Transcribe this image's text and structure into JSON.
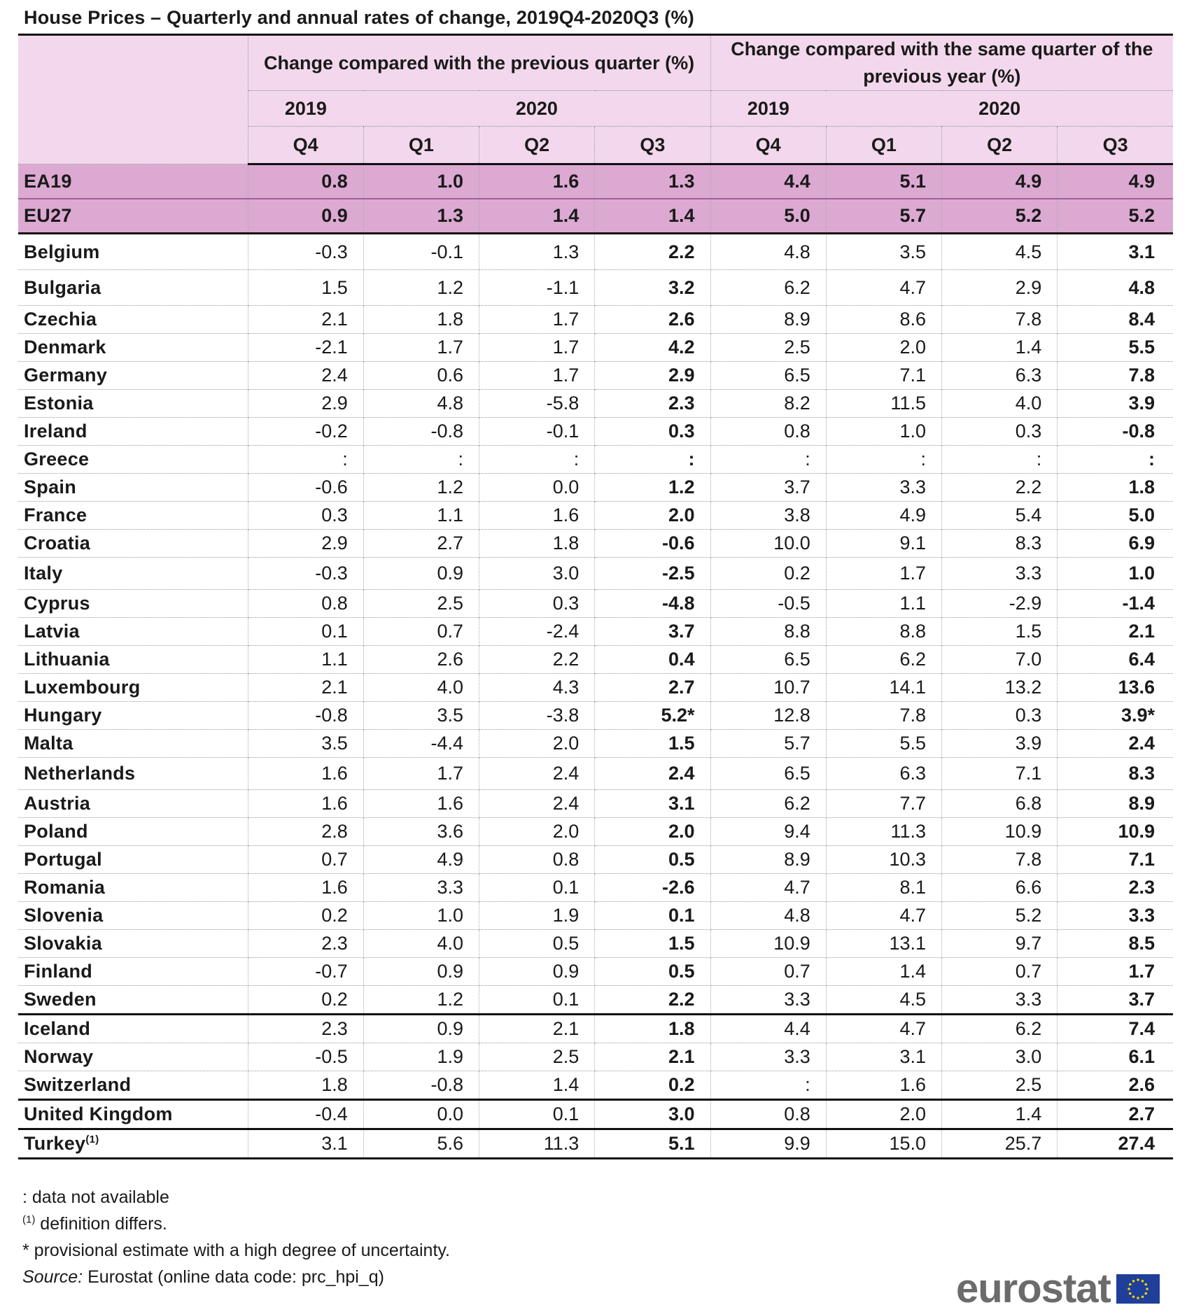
{
  "title": "House Prices – Quarterly and annual rates of change, 2019Q4-2020Q3 (%)",
  "header": {
    "group1": "Change compared with the previous quarter (%)",
    "group2": "Change compared with the same quarter of the previous year (%)",
    "year2019": "2019",
    "year2020": "2020",
    "quarters": [
      "Q4",
      "Q1",
      "Q2",
      "Q3",
      "Q4",
      "Q1",
      "Q2",
      "Q3"
    ]
  },
  "aggregates": [
    {
      "name": "EA19",
      "values": [
        "0.8",
        "1.0",
        "1.6",
        "1.3",
        "4.4",
        "5.1",
        "4.9",
        "4.9"
      ]
    },
    {
      "name": "EU27",
      "values": [
        "0.9",
        "1.3",
        "1.4",
        "1.4",
        "5.0",
        "5.7",
        "5.2",
        "5.2"
      ]
    }
  ],
  "members": [
    {
      "name": "Belgium",
      "values": [
        "-0.3",
        "-0.1",
        "1.3",
        "2.2",
        "4.8",
        "3.5",
        "4.5",
        "3.1"
      ]
    },
    {
      "name": "Bulgaria",
      "values": [
        "1.5",
        "1.2",
        "-1.1",
        "3.2",
        "6.2",
        "4.7",
        "2.9",
        "4.8"
      ]
    },
    {
      "name": "Czechia",
      "values": [
        "2.1",
        "1.8",
        "1.7",
        "2.6",
        "8.9",
        "8.6",
        "7.8",
        "8.4"
      ]
    },
    {
      "name": "Denmark",
      "values": [
        "-2.1",
        "1.7",
        "1.7",
        "4.2",
        "2.5",
        "2.0",
        "1.4",
        "5.5"
      ]
    },
    {
      "name": "Germany",
      "values": [
        "2.4",
        "0.6",
        "1.7",
        "2.9",
        "6.5",
        "7.1",
        "6.3",
        "7.8"
      ]
    },
    {
      "name": "Estonia",
      "values": [
        "2.9",
        "4.8",
        "-5.8",
        "2.3",
        "8.2",
        "11.5",
        "4.0",
        "3.9"
      ]
    },
    {
      "name": "Ireland",
      "values": [
        "-0.2",
        "-0.8",
        "-0.1",
        "0.3",
        "0.8",
        "1.0",
        "0.3",
        "-0.8"
      ]
    },
    {
      "name": "Greece",
      "values": [
        ":",
        ":",
        ":",
        ":",
        ":",
        ":",
        ":",
        ":"
      ]
    },
    {
      "name": "Spain",
      "values": [
        "-0.6",
        "1.2",
        "0.0",
        "1.2",
        "3.7",
        "3.3",
        "2.2",
        "1.8"
      ]
    },
    {
      "name": "France",
      "values": [
        "0.3",
        "1.1",
        "1.6",
        "2.0",
        "3.8",
        "4.9",
        "5.4",
        "5.0"
      ]
    },
    {
      "name": "Croatia",
      "values": [
        "2.9",
        "2.7",
        "1.8",
        "-0.6",
        "10.0",
        "9.1",
        "8.3",
        "6.9"
      ]
    },
    {
      "name": "Italy",
      "values": [
        "-0.3",
        "0.9",
        "3.0",
        "-2.5",
        "0.2",
        "1.7",
        "3.3",
        "1.0"
      ]
    },
    {
      "name": "Cyprus",
      "values": [
        "0.8",
        "2.5",
        "0.3",
        "-4.8",
        "-0.5",
        "1.1",
        "-2.9",
        "-1.4"
      ]
    },
    {
      "name": "Latvia",
      "values": [
        "0.1",
        "0.7",
        "-2.4",
        "3.7",
        "8.8",
        "8.8",
        "1.5",
        "2.1"
      ]
    },
    {
      "name": "Lithuania",
      "values": [
        "1.1",
        "2.6",
        "2.2",
        "0.4",
        "6.5",
        "6.2",
        "7.0",
        "6.4"
      ]
    },
    {
      "name": "Luxembourg",
      "values": [
        "2.1",
        "4.0",
        "4.3",
        "2.7",
        "10.7",
        "14.1",
        "13.2",
        "13.6"
      ]
    },
    {
      "name": "Hungary",
      "values": [
        "-0.8",
        "3.5",
        "-3.8",
        "5.2*",
        "12.8",
        "7.8",
        "0.3",
        "3.9*"
      ]
    },
    {
      "name": "Malta",
      "values": [
        "3.5",
        "-4.4",
        "2.0",
        "1.5",
        "5.7",
        "5.5",
        "3.9",
        "2.4"
      ]
    },
    {
      "name": "Netherlands",
      "values": [
        "1.6",
        "1.7",
        "2.4",
        "2.4",
        "6.5",
        "6.3",
        "7.1",
        "8.3"
      ]
    },
    {
      "name": "Austria",
      "values": [
        "1.6",
        "1.6",
        "2.4",
        "3.1",
        "6.2",
        "7.7",
        "6.8",
        "8.9"
      ]
    },
    {
      "name": "Poland",
      "values": [
        "2.8",
        "3.6",
        "2.0",
        "2.0",
        "9.4",
        "11.3",
        "10.9",
        "10.9"
      ]
    },
    {
      "name": "Portugal",
      "values": [
        "0.7",
        "4.9",
        "0.8",
        "0.5",
        "8.9",
        "10.3",
        "7.8",
        "7.1"
      ]
    },
    {
      "name": "Romania",
      "values": [
        "1.6",
        "3.3",
        "0.1",
        "-2.6",
        "4.7",
        "8.1",
        "6.6",
        "2.3"
      ]
    },
    {
      "name": "Slovenia",
      "values": [
        "0.2",
        "1.0",
        "1.9",
        "0.1",
        "4.8",
        "4.7",
        "5.2",
        "3.3"
      ]
    },
    {
      "name": "Slovakia",
      "values": [
        "2.3",
        "4.0",
        "0.5",
        "1.5",
        "10.9",
        "13.1",
        "9.7",
        "8.5"
      ]
    },
    {
      "name": "Finland",
      "values": [
        "-0.7",
        "0.9",
        "0.9",
        "0.5",
        "0.7",
        "1.4",
        "0.7",
        "1.7"
      ]
    },
    {
      "name": "Sweden",
      "values": [
        "0.2",
        "1.2",
        "0.1",
        "2.2",
        "3.3",
        "4.5",
        "3.3",
        "3.7"
      ]
    }
  ],
  "efta": [
    {
      "name": "Iceland",
      "values": [
        "2.3",
        "0.9",
        "2.1",
        "1.8",
        "4.4",
        "4.7",
        "6.2",
        "7.4"
      ]
    },
    {
      "name": "Norway",
      "values": [
        "-0.5",
        "1.9",
        "2.5",
        "2.1",
        "3.3",
        "3.1",
        "3.0",
        "6.1"
      ]
    },
    {
      "name": "Switzerland",
      "values": [
        "1.8",
        "-0.8",
        "1.4",
        "0.2",
        ":",
        "1.6",
        "2.5",
        "2.6"
      ]
    }
  ],
  "uk": {
    "name": "United Kingdom",
    "values": [
      "-0.4",
      "0.0",
      "0.1",
      "3.0",
      "0.8",
      "2.0",
      "1.4",
      "2.7"
    ]
  },
  "turkey": {
    "name": "Turkey",
    "sup": "(1)",
    "values": [
      "3.1",
      "5.6",
      "11.3",
      "5.1",
      "9.9",
      "15.0",
      "25.7",
      "27.4"
    ]
  },
  "notes": {
    "na": ": data not available",
    "def_sup": "(1)",
    "def": " definition differs.",
    "prov": "* provisional estimate with a high degree of uncertainty.",
    "source_label": "Source:",
    "source_text": " Eurostat (online data code: prc_hpi_q)"
  },
  "logo": {
    "text": "eurostat",
    "flag_color": "#1f3f9a",
    "star_color": "#f5d300"
  }
}
